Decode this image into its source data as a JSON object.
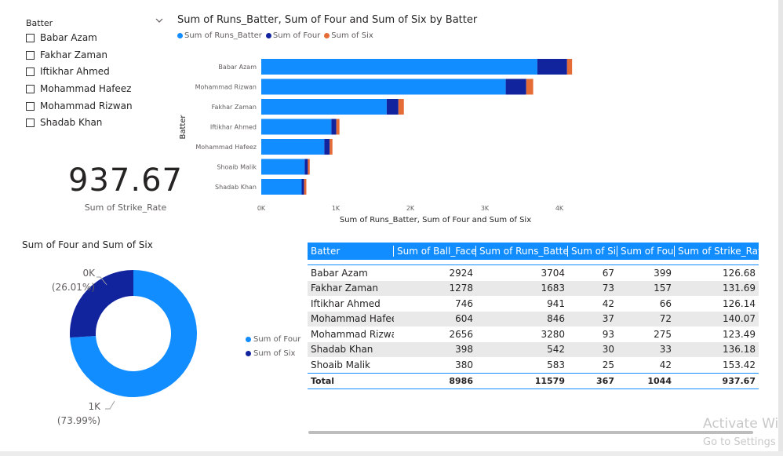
{
  "slicer": {
    "title": "Batter",
    "items": [
      {
        "label": "Babar Azam"
      },
      {
        "label": "Fakhar Zaman"
      },
      {
        "label": "Iftikhar Ahmed"
      },
      {
        "label": "Mohammad Hafeez"
      },
      {
        "label": "Mohammad Rizwan"
      },
      {
        "label": "Shadab Khan"
      }
    ]
  },
  "kpi": {
    "value": "937.67",
    "label": "Sum of Strike_Rate"
  },
  "bar_chart": {
    "title": "Sum of Runs_Batter, Sum of Four and Sum of Six by Batter",
    "legend": [
      "Sum of Runs_Batter",
      "Sum of Four",
      "Sum of Six"
    ],
    "colors": [
      "#118dff",
      "#12239e",
      "#e66c37"
    ]
  },
  "donut": {
    "title": "Sum of Four and Sum of Six",
    "legend": [
      "Sum of Four",
      "Sum of Six"
    ],
    "colors": [
      "#118dff",
      "#12239e"
    ],
    "label_four_value": "1K",
    "label_four_pct": "(73.99%)",
    "label_six_value": "0K",
    "label_six_pct": "(26.01%)"
  },
  "table": {
    "headers": [
      "Batter",
      "Sum of Ball_Faced",
      "Sum of Runs_Batter",
      "Sum of Six",
      "Sum of Four",
      "Sum of Strike_Rate"
    ],
    "rows": [
      [
        "Babar Azam",
        "2924",
        "3704",
        "67",
        "399",
        "126.68"
      ],
      [
        "Fakhar Zaman",
        "1278",
        "1683",
        "73",
        "157",
        "131.69"
      ],
      [
        "Iftikhar Ahmed",
        "746",
        "941",
        "42",
        "66",
        "126.14"
      ],
      [
        "Mohammad Hafeez",
        "604",
        "846",
        "37",
        "72",
        "140.07"
      ],
      [
        "Mohammad Rizwan",
        "2656",
        "3280",
        "93",
        "275",
        "123.49"
      ],
      [
        "Shadab Khan",
        "398",
        "542",
        "30",
        "33",
        "136.18"
      ],
      [
        "Shoaib Malik",
        "380",
        "583",
        "25",
        "42",
        "153.42"
      ]
    ],
    "total": [
      "Total",
      "8986",
      "11579",
      "367",
      "1044",
      "937.67"
    ]
  },
  "watermark": {
    "line1": "Activate Wi",
    "line2": "Go to Settings t"
  },
  "chart_data": [
    {
      "type": "bar",
      "orientation": "horizontal",
      "stacked": true,
      "title": "Sum of Runs_Batter, Sum of Four and Sum of Six by Batter",
      "xlabel": "Sum of Runs_Batter, Sum of Four and Sum of Six",
      "ylabel": "Batter",
      "categories": [
        "Babar Azam",
        "Mohammad Rizwan",
        "Fakhar Zaman",
        "Iftikhar Ahmed",
        "Mohammad Hafeez",
        "Shoaib Malik",
        "Shadab Khan"
      ],
      "series": [
        {
          "name": "Sum of Runs_Batter",
          "values": [
            3704,
            3280,
            1683,
            941,
            846,
            583,
            542
          ]
        },
        {
          "name": "Sum of Four",
          "values": [
            399,
            275,
            157,
            66,
            72,
            42,
            33
          ]
        },
        {
          "name": "Sum of Six",
          "values": [
            67,
            93,
            73,
            42,
            37,
            25,
            30
          ]
        }
      ],
      "xticks": [
        "0K",
        "1K",
        "2K",
        "3K",
        "4K"
      ],
      "xlim": [
        0,
        4400
      ],
      "legend_position": "top-left"
    },
    {
      "type": "pie",
      "donut": true,
      "title": "Sum of Four and Sum of Six",
      "categories": [
        "Sum of Four",
        "Sum of Six"
      ],
      "values": [
        1044,
        367
      ],
      "labels": [
        "1K (73.99%)",
        "0K (26.01%)"
      ],
      "legend_position": "right"
    }
  ]
}
